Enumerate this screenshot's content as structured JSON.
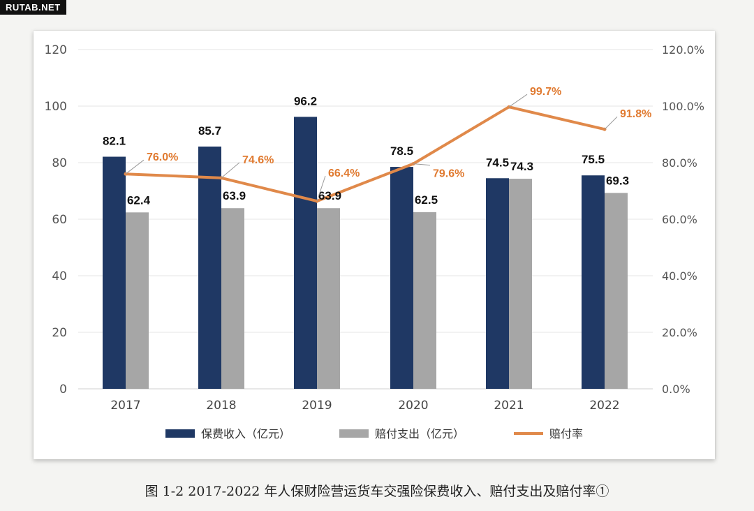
{
  "watermark": "RUTAB.NET",
  "caption": "图 1-2 2017-2022 年人保财险营运货车交强险保费收入、赔付支出及赔付率①",
  "colors": {
    "premium": "#1f3864",
    "claims": "#a6a6a6",
    "ratio": "#e0894a",
    "ratio_label": "#e07a30",
    "grid": "#e6e6e6",
    "axis_text": "#555555"
  },
  "chart_data": {
    "type": "bar",
    "categories": [
      "2017",
      "2018",
      "2019",
      "2020",
      "2021",
      "2022"
    ],
    "series": [
      {
        "name": "保费收入（亿元）",
        "kind": "bar",
        "axis": "left",
        "values": [
          82.1,
          85.7,
          96.2,
          78.5,
          74.5,
          75.5
        ],
        "labels": [
          "82.1",
          "85.7",
          "96.2",
          "78.5",
          "74.5",
          "75.5"
        ]
      },
      {
        "name": "赔付支出（亿元）",
        "kind": "bar",
        "axis": "left",
        "values": [
          62.4,
          63.9,
          63.9,
          62.5,
          74.3,
          69.3
        ],
        "labels": [
          "62.4",
          "63.9",
          "63.9",
          "62.5",
          "74.3",
          "69.3"
        ]
      },
      {
        "name": "赔付率",
        "kind": "line",
        "axis": "right",
        "values": [
          76.0,
          74.6,
          66.4,
          79.6,
          99.7,
          91.8
        ],
        "labels": [
          "76.0%",
          "74.6%",
          "66.4%",
          "79.6%",
          "99.7%",
          "91.8%"
        ]
      }
    ],
    "ylim": [
      0,
      120
    ],
    "yticks": [
      "0",
      "20",
      "40",
      "60",
      "80",
      "100",
      "120"
    ],
    "y2lim": [
      0,
      120
    ],
    "y2ticks": [
      "0.0%",
      "20.0%",
      "40.0%",
      "60.0%",
      "80.0%",
      "100.0%",
      "120.0%"
    ],
    "grid": true,
    "legend_position": "bottom"
  }
}
